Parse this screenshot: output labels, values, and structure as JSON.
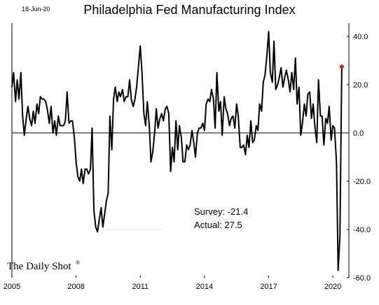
{
  "header": {
    "date": "18-Jun-20"
  },
  "brand": {
    "name": "The Daily Shot",
    "mark": "®"
  },
  "annotations": {
    "survey": "Survey: -21.4",
    "actual": "Actual:  27.5"
  },
  "colors": {
    "line": "#000000",
    "point": "#e02020"
  },
  "chart_data": {
    "type": "line",
    "title": "Philadelphia Fed Manufacturing Index",
    "xlabel": "",
    "ylabel": "",
    "ylim": [
      -60,
      40
    ],
    "x_range": [
      2005.0,
      2020.75
    ],
    "x_ticks": [
      "2005",
      "2008",
      "2011",
      "2014",
      "2017",
      "2020"
    ],
    "x_tick_values": [
      2005,
      2008,
      2011,
      2014,
      2017,
      2020
    ],
    "y_ticks": [
      "40.0",
      "20.0",
      "0.0",
      "-20.0",
      "-40.0",
      "-60.0"
    ],
    "y_tick_values": [
      40,
      20,
      0,
      -20,
      -40,
      -60
    ],
    "grid": false,
    "y_axis_side": "right",
    "series": [
      {
        "x": [
          2005.0,
          2005.08,
          2005.17,
          2005.25,
          2005.33,
          2005.42,
          2005.5,
          2005.58,
          2005.67,
          2005.75,
          2005.83,
          2005.92,
          2006.0,
          2006.08,
          2006.17,
          2006.25,
          2006.33,
          2006.42,
          2006.5,
          2006.58,
          2006.67,
          2006.75,
          2006.83,
          2006.92,
          2007.0,
          2007.08,
          2007.17,
          2007.25,
          2007.33,
          2007.42,
          2007.5,
          2007.58,
          2007.67,
          2007.75,
          2007.83,
          2007.92,
          2008.0,
          2008.08,
          2008.17,
          2008.25,
          2008.33,
          2008.42,
          2008.5,
          2008.58,
          2008.67,
          2008.75,
          2008.83,
          2008.92,
          2009.0,
          2009.08,
          2009.17,
          2009.25,
          2009.33,
          2009.42,
          2009.5,
          2009.58,
          2009.67,
          2009.75,
          2009.83,
          2009.92,
          2010.0,
          2010.08,
          2010.17,
          2010.25,
          2010.33,
          2010.42,
          2010.5,
          2010.58,
          2010.67,
          2010.75,
          2010.83,
          2010.92,
          2011.0,
          2011.08,
          2011.17,
          2011.25,
          2011.33,
          2011.42,
          2011.5,
          2011.58,
          2011.67,
          2011.75,
          2011.83,
          2011.92,
          2012.0,
          2012.08,
          2012.17,
          2012.25,
          2012.33,
          2012.42,
          2012.5,
          2012.58,
          2012.67,
          2012.75,
          2012.83,
          2012.92,
          2013.0,
          2013.08,
          2013.17,
          2013.25,
          2013.33,
          2013.42,
          2013.5,
          2013.58,
          2013.67,
          2013.75,
          2013.83,
          2013.92,
          2014.0,
          2014.08,
          2014.17,
          2014.25,
          2014.33,
          2014.42,
          2014.5,
          2014.58,
          2014.67,
          2014.75,
          2014.83,
          2014.92,
          2015.0,
          2015.08,
          2015.17,
          2015.25,
          2015.33,
          2015.42,
          2015.5,
          2015.58,
          2015.67,
          2015.75,
          2015.83,
          2015.92,
          2016.0,
          2016.08,
          2016.17,
          2016.25,
          2016.33,
          2016.42,
          2016.5,
          2016.58,
          2016.67,
          2016.75,
          2016.83,
          2016.92,
          2017.0,
          2017.08,
          2017.17,
          2017.25,
          2017.33,
          2017.42,
          2017.5,
          2017.58,
          2017.67,
          2017.75,
          2017.83,
          2017.92,
          2018.0,
          2018.08,
          2018.17,
          2018.25,
          2018.33,
          2018.42,
          2018.5,
          2018.58,
          2018.67,
          2018.75,
          2018.83,
          2018.92,
          2019.0,
          2019.08,
          2019.17,
          2019.25,
          2019.33,
          2019.42,
          2019.5,
          2019.58,
          2019.67,
          2019.75,
          2019.83,
          2019.92,
          2020.0,
          2020.08,
          2020.17,
          2020.25,
          2020.33,
          2020.42
        ],
        "values": [
          19,
          25,
          13,
          22,
          14,
          25,
          7,
          -1,
          6,
          11,
          6,
          3,
          9,
          4,
          12,
          8,
          15,
          14,
          14,
          13,
          9,
          4,
          11,
          0,
          5,
          -1,
          7,
          3,
          3,
          3,
          5,
          17,
          4,
          5,
          5,
          -2,
          -12,
          -18,
          -20,
          -15,
          -21,
          -15,
          -15,
          -17,
          -15,
          2,
          -32,
          -39,
          -41,
          -36,
          -31,
          -39,
          -34,
          -28,
          -25,
          7,
          -7,
          14,
          19,
          13,
          17,
          15,
          18,
          13,
          15,
          15,
          22,
          14,
          11,
          14,
          19,
          28,
          36,
          25,
          8,
          3,
          13,
          3,
          -12,
          -8,
          0,
          10,
          2,
          6,
          8,
          5,
          10,
          11,
          8,
          -16,
          -6,
          -12,
          5,
          -7,
          3,
          -2,
          -12,
          -12,
          -5,
          -7,
          -5,
          1,
          -4,
          -10,
          0,
          2,
          2,
          4,
          1,
          12,
          14,
          13,
          18,
          14,
          2,
          25,
          9,
          13,
          -1,
          15,
          10,
          8,
          3,
          6,
          7,
          2,
          12,
          7,
          -6,
          -6,
          -5,
          -9,
          -1,
          -6,
          5,
          -4,
          -3,
          3,
          1,
          12,
          9,
          21,
          24,
          32,
          42,
          25,
          21,
          38,
          18,
          20,
          23,
          27,
          19,
          23,
          26,
          22,
          17,
          25,
          18,
          31,
          12,
          19,
          -1,
          4,
          12,
          7,
          16,
          17,
          6,
          12,
          2,
          -4,
          22,
          7,
          7,
          -5,
          6,
          4,
          11,
          -3,
          3,
          2,
          -12,
          -57,
          -43,
          28
        ],
        "last_point": {
          "x": 2020.42,
          "y": 27.5
        }
      }
    ]
  }
}
